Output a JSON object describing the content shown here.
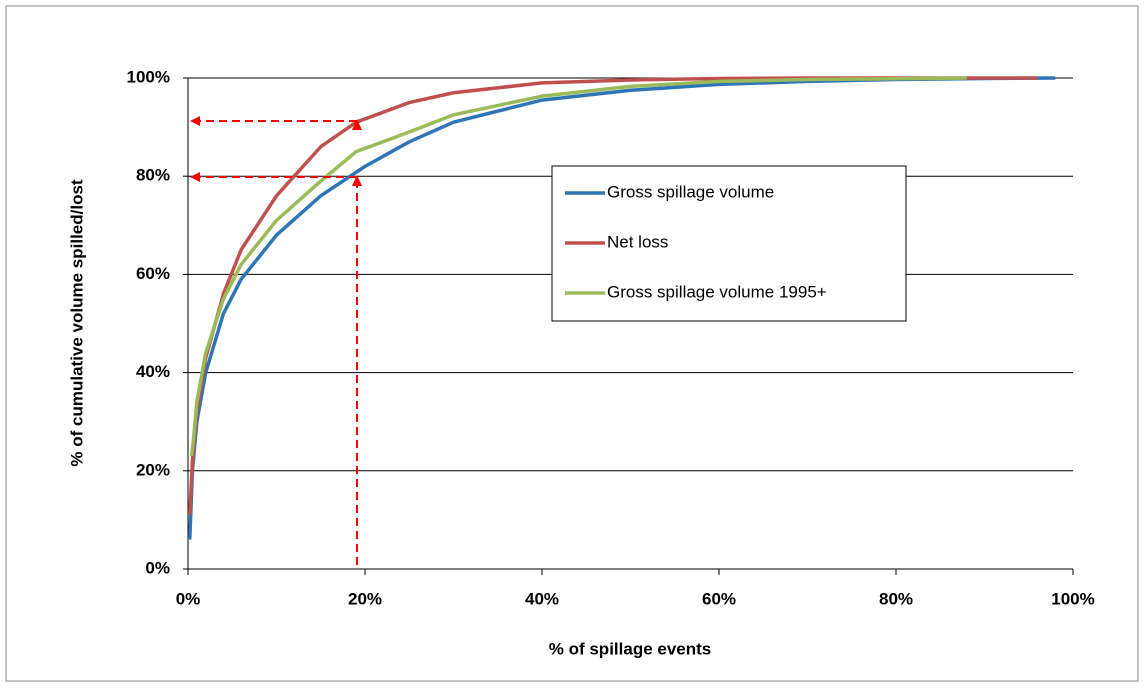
{
  "chart_data": {
    "type": "line",
    "ylabel": "% of cumulative volume spilled/lost",
    "xlabel": "% of spillage events",
    "series": [
      {
        "name": "Gross spillage volume",
        "color": "#2e75b6",
        "x": [
          0.2,
          0.5,
          1,
          2,
          4,
          6,
          10,
          15,
          20,
          25,
          30,
          40,
          50,
          60,
          70,
          80,
          90,
          98
        ],
        "values": [
          6,
          20,
          30,
          40,
          52,
          59,
          68,
          76,
          82,
          87,
          91,
          95.5,
          97.5,
          98.7,
          99.3,
          99.7,
          99.9,
          100
        ]
      },
      {
        "name": "Net loss",
        "color": "#c0504d",
        "x": [
          0.2,
          0.5,
          1,
          2,
          4,
          6,
          10,
          15,
          19,
          25,
          30,
          40,
          50,
          60,
          70,
          96
        ],
        "values": [
          11,
          22,
          32,
          43,
          56,
          65,
          76,
          86,
          91,
          95,
          97,
          99,
          99.6,
          99.9,
          100,
          100
        ]
      },
      {
        "name": "Gross spillage volume 1995+",
        "color": "#9bbb59",
        "x": [
          0.4,
          0.6,
          1,
          2,
          4,
          6,
          10,
          15,
          19,
          25,
          30,
          40,
          50,
          60,
          70,
          88
        ],
        "values": [
          23,
          26,
          34,
          44,
          55,
          62,
          71,
          79,
          85,
          89,
          92.5,
          96.3,
          98.3,
          99.3,
          99.7,
          100
        ]
      }
    ],
    "xlim": [
      0,
      100
    ],
    "xticks": [
      {
        "value": 0,
        "label": "0%"
      },
      {
        "value": 20,
        "label": "20%"
      },
      {
        "value": 40,
        "label": "40%"
      },
      {
        "value": 60,
        "label": "60%"
      },
      {
        "value": 80,
        "label": "80%"
      },
      {
        "value": 100,
        "label": "100%"
      }
    ],
    "ylim": [
      0,
      100
    ],
    "yticks": [
      {
        "value": 0,
        "label": "0%"
      },
      {
        "value": 20,
        "label": "20%"
      },
      {
        "value": 40,
        "label": "40%"
      },
      {
        "value": 60,
        "label": "60%"
      },
      {
        "value": 80,
        "label": "80%"
      },
      {
        "value": 100,
        "label": "100%"
      }
    ],
    "grid": true
  }
}
